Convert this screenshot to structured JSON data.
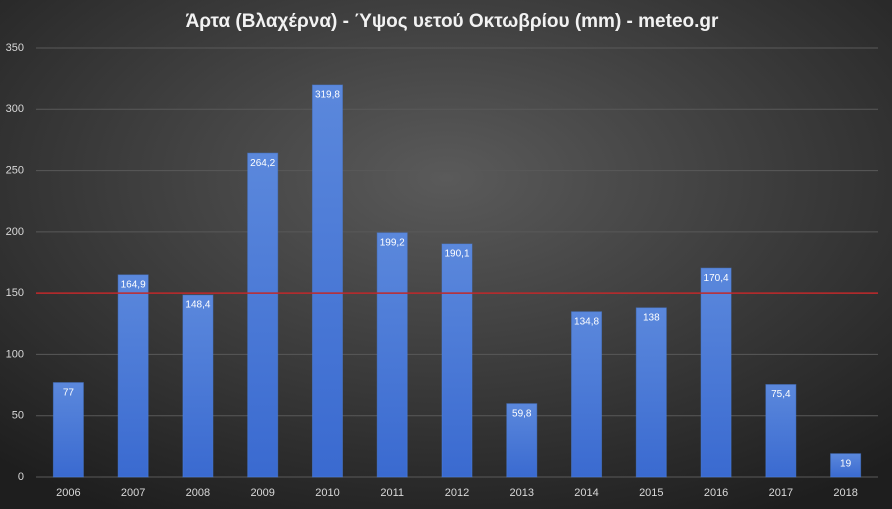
{
  "chart_data": {
    "type": "bar",
    "title": "Άρτα (Βλαχέρνα)  - Ύψος υετού Οκτωβρίου (mm)   - meteo.gr",
    "categories": [
      "2006",
      "2007",
      "2008",
      "2009",
      "2010",
      "2011",
      "2012",
      "2013",
      "2014",
      "2015",
      "2016",
      "2017",
      "2018"
    ],
    "values": [
      77,
      164.9,
      148.4,
      264.2,
      319.8,
      199.2,
      190.1,
      59.8,
      134.8,
      138,
      170.4,
      75.4,
      19
    ],
    "value_labels": [
      "77",
      "164,9",
      "148,4",
      "264,2",
      "319,8",
      "199,2",
      "190,1",
      "59,8",
      "134,8",
      "138",
      "170,4",
      "75,4",
      "19"
    ],
    "color": "#4a7fe0",
    "ylim": [
      0,
      350
    ],
    "yticks": [
      0,
      50,
      100,
      150,
      200,
      250,
      300,
      350
    ],
    "grid": true,
    "reference_line": {
      "value": 150,
      "color": "#c0282a"
    }
  }
}
